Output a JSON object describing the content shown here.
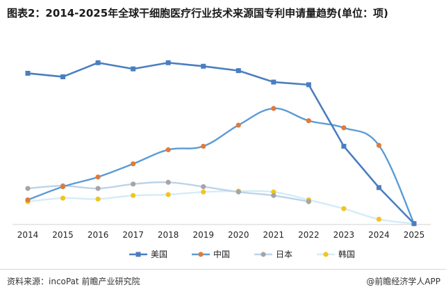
{
  "title": "图表2：2014-2025年全球干细胞医疗行业技术来源国专利申请量趋势(单位：项)",
  "source": "资料来源：incoPat 前瞻产业研究院",
  "credit": "@前瞻经济学人APP",
  "chart_data": {
    "type": "line",
    "x": [
      "2014",
      "2015",
      "2016",
      "2017",
      "2018",
      "2019",
      "2020",
      "2021",
      "2022",
      "2023",
      "2024",
      "2025"
    ],
    "ylim": [
      0,
      1000
    ],
    "grid": false,
    "legend_position": "bottom",
    "series": [
      {
        "name": "美国",
        "color": "#4a7ebf",
        "marker": "square",
        "smooth": false,
        "values": [
          860,
          840,
          920,
          885,
          920,
          900,
          875,
          810,
          795,
          445,
          210,
          5
        ]
      },
      {
        "name": "中国",
        "color": "#e07b39",
        "line_color": "#5b9bd5",
        "marker": "circle",
        "smooth": true,
        "values": [
          140,
          215,
          270,
          345,
          425,
          445,
          565,
          660,
          590,
          550,
          450,
          5
        ]
      },
      {
        "name": "日本",
        "color": "#a5a5a5",
        "line_color": "#bcd3ea",
        "marker": "circle",
        "smooth": true,
        "values": [
          205,
          220,
          205,
          230,
          240,
          215,
          185,
          165,
          130,
          null,
          null,
          null
        ]
      },
      {
        "name": "韩国",
        "color": "#f2c41f",
        "line_color": "#d4ecf7",
        "marker": "circle",
        "smooth": true,
        "values": [
          130,
          150,
          145,
          165,
          170,
          185,
          190,
          185,
          140,
          90,
          30,
          5
        ]
      }
    ]
  }
}
